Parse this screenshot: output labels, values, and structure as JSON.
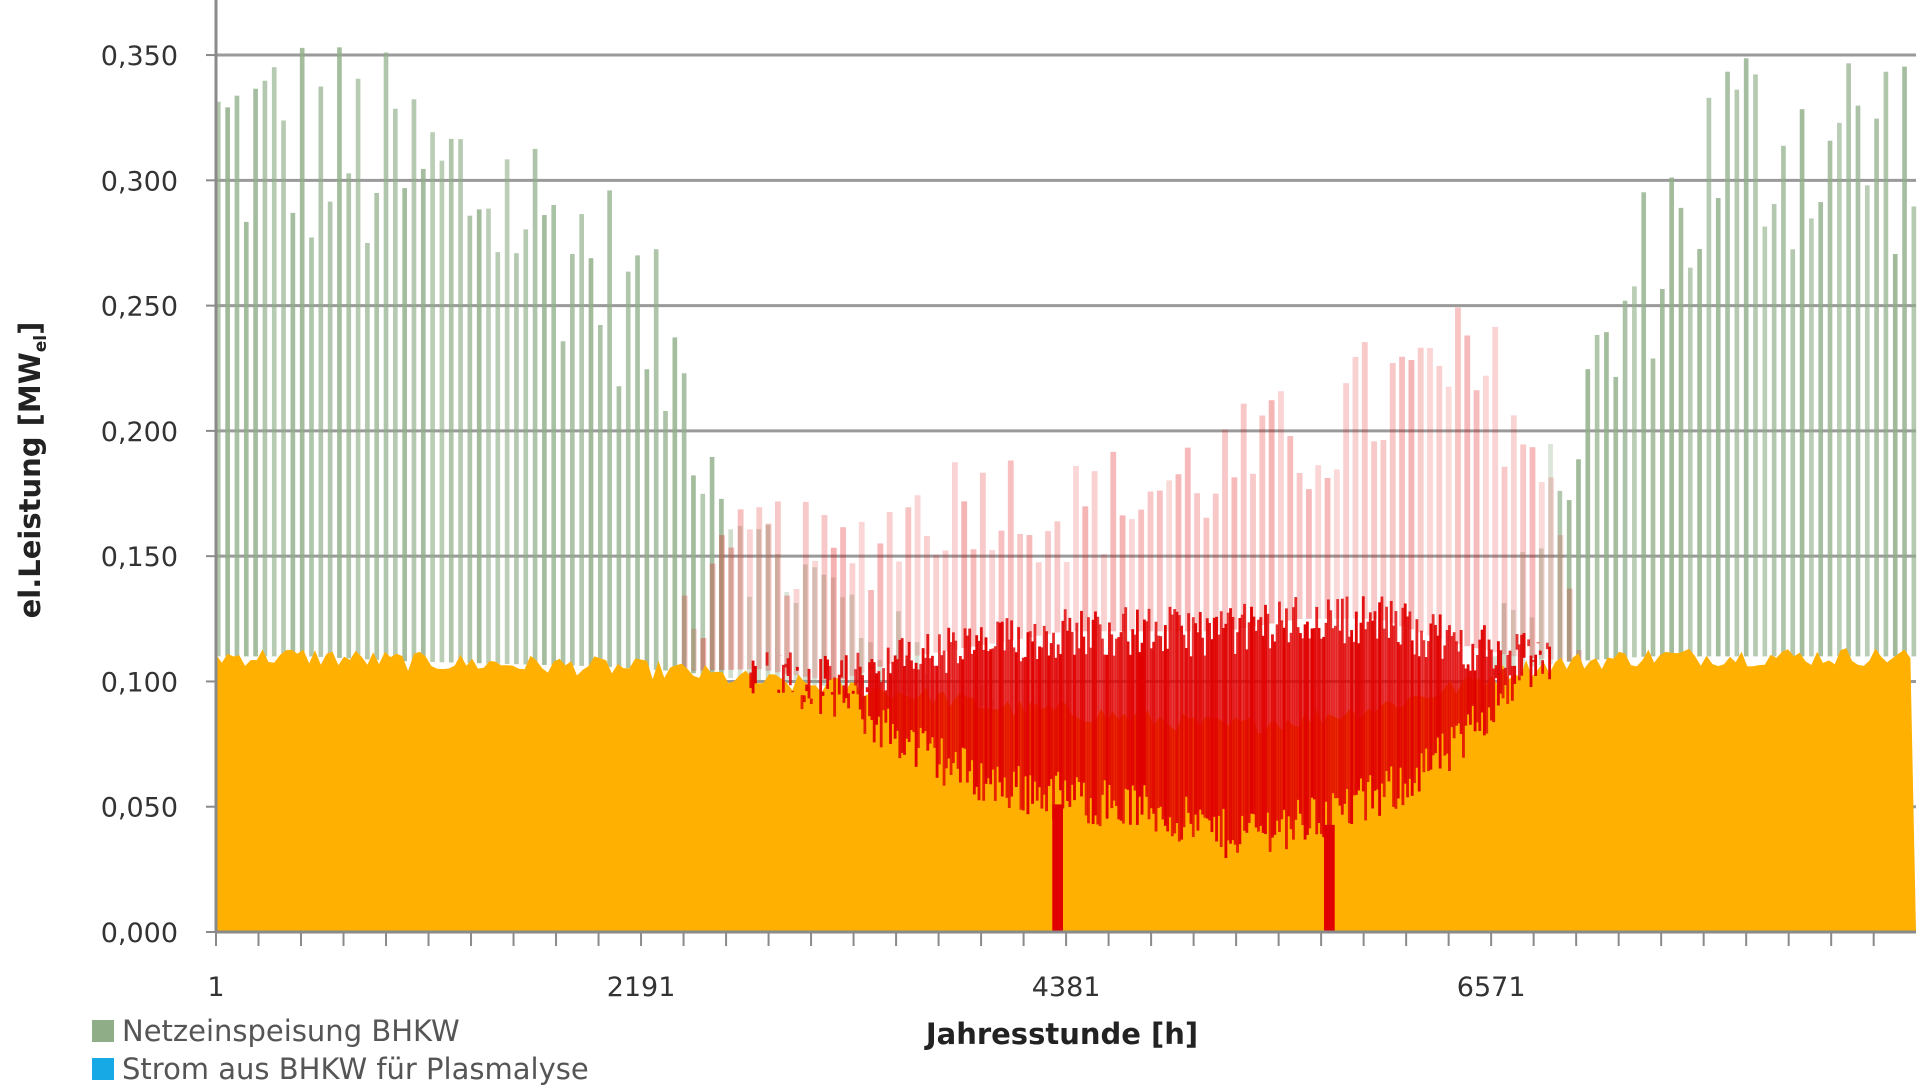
{
  "chart_data": {
    "type": "area",
    "xlabel": "Jahresstunde [h]",
    "ylabel": "el.Leistung [MW",
    "ylabel_sub": "el",
    "ylabel_end": "]",
    "ylim": [
      0,
      0.36
    ],
    "xlim": [
      1,
      8760
    ],
    "x_ticks": [
      "1",
      "2191",
      "4381",
      "6571"
    ],
    "x_tick_values": [
      1,
      2191,
      4381,
      6571
    ],
    "y_ticks": [
      "0,000",
      "0,050",
      "0,100",
      "0,150",
      "0,200",
      "0,250",
      "0,300",
      "0,350"
    ],
    "y_tick_values": [
      0,
      0.05,
      0.1,
      0.15,
      0.2,
      0.25,
      0.3,
      0.35
    ],
    "grid": true,
    "legend_position": "bottom-left",
    "series": [
      {
        "name": "Netzeinspeisung BHKW",
        "color": "#8fae88"
      },
      {
        "name": "Strom aus BHKW für Plasmalyse",
        "color": "#16a9e6"
      }
    ],
    "unlabeled_series_colors": {
      "base": "#ffb000",
      "deficit": "#e00000"
    },
    "profile_points": {
      "x": [
        1,
        500,
        1000,
        1500,
        2000,
        2400,
        2800,
        3200,
        3600,
        4000,
        4381,
        4800,
        5200,
        5600,
        6000,
        6400,
        6700,
        7000,
        7400,
        7800,
        8200,
        8760
      ],
      "base_top": [
        0.11,
        0.11,
        0.108,
        0.107,
        0.106,
        0.104,
        0.1,
        0.098,
        0.095,
        0.09,
        0.088,
        0.085,
        0.082,
        0.085,
        0.09,
        0.098,
        0.105,
        0.108,
        0.11,
        0.11,
        0.11,
        0.11
      ],
      "green_peak": [
        0.355,
        0.355,
        0.34,
        0.33,
        0.3,
        0.25,
        0.17,
        0.15,
        0.12,
        0.1,
        0.0,
        0.0,
        0.0,
        0.0,
        0.0,
        0.08,
        0.14,
        0.22,
        0.3,
        0.355,
        0.355,
        0.355
      ],
      "red_core_bottom": [
        0.11,
        0.11,
        0.108,
        0.107,
        0.106,
        0.104,
        0.1,
        0.09,
        0.07,
        0.055,
        0.05,
        0.045,
        0.035,
        0.04,
        0.05,
        0.07,
        0.1,
        0.108,
        0.11,
        0.11,
        0.11,
        0.11
      ],
      "red_core_top": [
        0.11,
        0.11,
        0.108,
        0.107,
        0.106,
        0.104,
        0.105,
        0.1,
        0.11,
        0.115,
        0.12,
        0.12,
        0.12,
        0.125,
        0.125,
        0.115,
        0.11,
        0.108,
        0.11,
        0.11,
        0.11,
        0.11
      ],
      "red_peak": [
        0.0,
        0.0,
        0.0,
        0.0,
        0.0,
        0.13,
        0.17,
        0.16,
        0.18,
        0.19,
        0.18,
        0.19,
        0.2,
        0.21,
        0.23,
        0.24,
        0.23,
        0.15,
        0.0,
        0.0,
        0.0,
        0.0
      ]
    }
  }
}
